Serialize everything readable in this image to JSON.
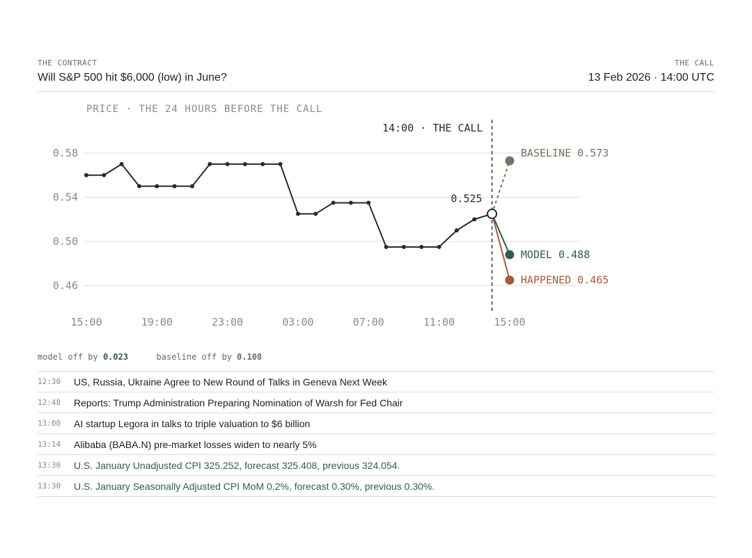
{
  "header": {
    "contract_kicker": "THE CONTRACT",
    "contract_title": "Will S&P 500 hit $6,000 (low) in June?",
    "call_kicker": "THE CALL",
    "call_time": "13 Feb 2026 · 14:00 UTC"
  },
  "chart_data": {
    "type": "line",
    "title": "PRICE · THE 24 HOURS BEFORE THE CALL",
    "call_label": "14:00 · THE CALL",
    "x_ticks": [
      "15:00",
      "19:00",
      "23:00",
      "03:00",
      "07:00",
      "11:00",
      "15:00"
    ],
    "y_ticks": [
      0.58,
      0.54,
      0.5,
      0.46
    ],
    "ylim": [
      0.445,
      0.6
    ],
    "grid": true,
    "series": [
      {
        "x": [
          "15:00",
          "16:00",
          "17:00",
          "18:00",
          "19:00",
          "20:00",
          "21:00",
          "22:00",
          "23:00",
          "00:00",
          "01:00",
          "02:00",
          "03:00",
          "04:00",
          "05:00",
          "06:00",
          "07:00",
          "08:00",
          "09:00",
          "10:00",
          "11:00",
          "12:00",
          "13:00",
          "14:00"
        ],
        "values": [
          0.56,
          0.56,
          0.57,
          0.55,
          0.55,
          0.55,
          0.55,
          0.57,
          0.57,
          0.57,
          0.57,
          0.57,
          0.525,
          0.525,
          0.535,
          0.535,
          0.535,
          0.495,
          0.495,
          0.495,
          0.495,
          0.51,
          0.52,
          0.525
        ]
      }
    ],
    "call_value_label": "0.525",
    "outcomes": [
      {
        "name": "BASELINE",
        "value": 0.573,
        "label": "BASELINE 0.573",
        "color": "#7a7064",
        "dashed": true
      },
      {
        "name": "MODEL",
        "value": 0.488,
        "label": "MODEL 0.488",
        "color": "#2f5d4f",
        "dashed": false
      },
      {
        "name": "HAPPENED",
        "value": 0.465,
        "label": "HAPPENED 0.465",
        "color": "#a85a3a",
        "dashed": false
      }
    ],
    "outcome_time": "15:00"
  },
  "stats": {
    "model_label": "model off by",
    "model_value": "0.023",
    "baseline_label": "baseline off by",
    "baseline_value": "0.108"
  },
  "news": [
    {
      "time": "12:30",
      "headline": "US, Russia, Ukraine Agree to New Round of Talks in Geneva Next Week",
      "econ": false
    },
    {
      "time": "12:48",
      "headline": "Reports: Trump Administration Preparing Nomination of Warsh for Fed Chair",
      "econ": false
    },
    {
      "time": "13:00",
      "headline": "AI startup Legora in talks to triple valuation to $6 billion",
      "econ": false
    },
    {
      "time": "13:14",
      "headline": "Alibaba (BABA.N) pre-market losses widen to nearly 5%",
      "econ": false
    },
    {
      "time": "13:30",
      "headline": "U.S. January Unadjusted CPI 325.252, forecast 325.408, previous 324.054.",
      "econ": true
    },
    {
      "time": "13:30",
      "headline": "U.S. January Seasonally Adjusted CPI MoM 0.2%, forecast 0.30%, previous 0.30%.",
      "econ": true
    }
  ]
}
